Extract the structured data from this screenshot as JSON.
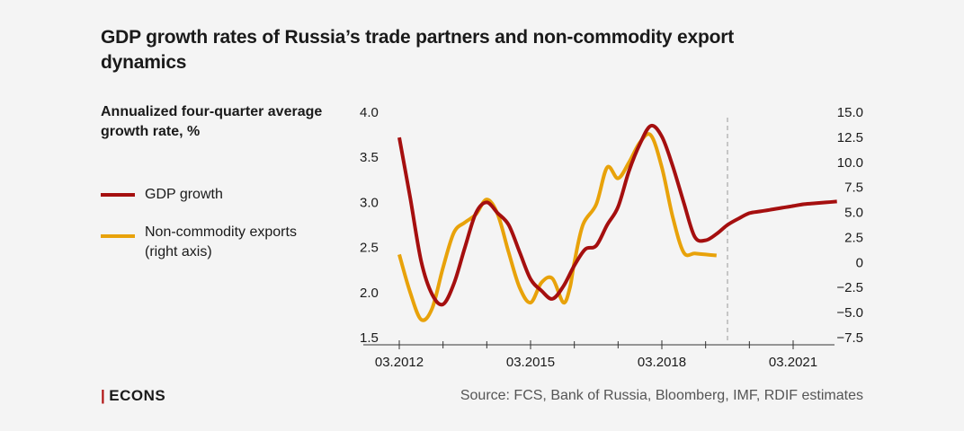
{
  "title": "GDP growth rates of Russia’s trade partners and non-commodity export dynamics",
  "subtitle": "Annualized four-quarter average growth rate, %",
  "legend": [
    {
      "label": "GDP growth",
      "color": "#a50f0f"
    },
    {
      "label": "Non-commodity exports (right axis)",
      "color": "#e8a20a"
    }
  ],
  "brand": {
    "bar": "|",
    "name": "ECONS"
  },
  "source": "Source: FCS, Bank of Russia, Bloomberg, IMF, RDIF estimates",
  "chart_data": {
    "type": "line",
    "left_axis": {
      "ticks": [
        "4.0",
        "3.5",
        "3.0",
        "2.5",
        "2.0",
        "1.5"
      ],
      "range": [
        1.5,
        4.0
      ]
    },
    "right_axis": {
      "ticks": [
        "15.0",
        "12.5",
        "10.0",
        "7.5",
        "5.0",
        "2.5",
        "0",
        "−2.5",
        "−5.0",
        "−7.5"
      ],
      "range": [
        -7.5,
        15.0
      ]
    },
    "x_ticks": [
      {
        "label": "03.2012",
        "x": 2012.0
      },
      {
        "label": "03.2015",
        "x": 2015.0
      },
      {
        "label": "03.2018",
        "x": 2018.0
      },
      {
        "label": "03.2021",
        "x": 2021.0
      }
    ],
    "forecast_start": 2019.5,
    "series": [
      {
        "name": "GDP growth",
        "axis": "left",
        "color": "#a50f0f",
        "x": [
          2012.0,
          2012.25,
          2012.5,
          2012.75,
          2013.0,
          2013.25,
          2013.5,
          2013.75,
          2014.0,
          2014.25,
          2014.5,
          2014.75,
          2015.0,
          2015.25,
          2015.5,
          2015.75,
          2016.0,
          2016.25,
          2016.5,
          2016.75,
          2017.0,
          2017.25,
          2017.5,
          2017.75,
          2018.0,
          2018.25,
          2018.5,
          2018.75,
          2019.0,
          2019.25,
          2019.5,
          2019.75,
          2020.0,
          2020.25,
          2020.5,
          2020.75,
          2021.0,
          2021.25,
          2021.5,
          2021.75,
          2022.0
        ],
        "values": [
          3.72,
          3.05,
          2.35,
          1.98,
          1.87,
          2.1,
          2.5,
          2.88,
          3.0,
          2.88,
          2.75,
          2.45,
          2.15,
          2.02,
          1.93,
          2.07,
          2.3,
          2.48,
          2.52,
          2.75,
          2.95,
          3.35,
          3.65,
          3.85,
          3.73,
          3.4,
          3.0,
          2.62,
          2.58,
          2.65,
          2.75,
          2.82,
          2.88,
          2.9,
          2.92,
          2.94,
          2.96,
          2.98,
          2.99,
          3.0,
          3.01
        ]
      },
      {
        "name": "Non-commodity exports (right axis)",
        "axis": "right",
        "color": "#e8a20a",
        "x": [
          2012.0,
          2012.25,
          2012.5,
          2012.75,
          2013.0,
          2013.25,
          2013.5,
          2013.75,
          2014.0,
          2014.25,
          2014.5,
          2014.75,
          2015.0,
          2015.25,
          2015.5,
          2015.75,
          2015.9,
          2016.0,
          2016.2,
          2016.5,
          2016.75,
          2017.0,
          2017.25,
          2017.5,
          2017.75,
          2018.0,
          2018.25,
          2018.5,
          2018.75,
          2019.0,
          2019.25
        ],
        "values": [
          0.8,
          -3.0,
          -5.7,
          -4.6,
          -0.5,
          3.0,
          4.0,
          4.8,
          6.3,
          4.8,
          1.0,
          -2.5,
          -4.0,
          -2.0,
          -1.6,
          -4.0,
          -2.5,
          0.0,
          3.8,
          5.8,
          9.5,
          8.4,
          10.0,
          12.0,
          12.7,
          9.5,
          4.5,
          1.0,
          0.9,
          0.8,
          0.7
        ]
      }
    ]
  }
}
